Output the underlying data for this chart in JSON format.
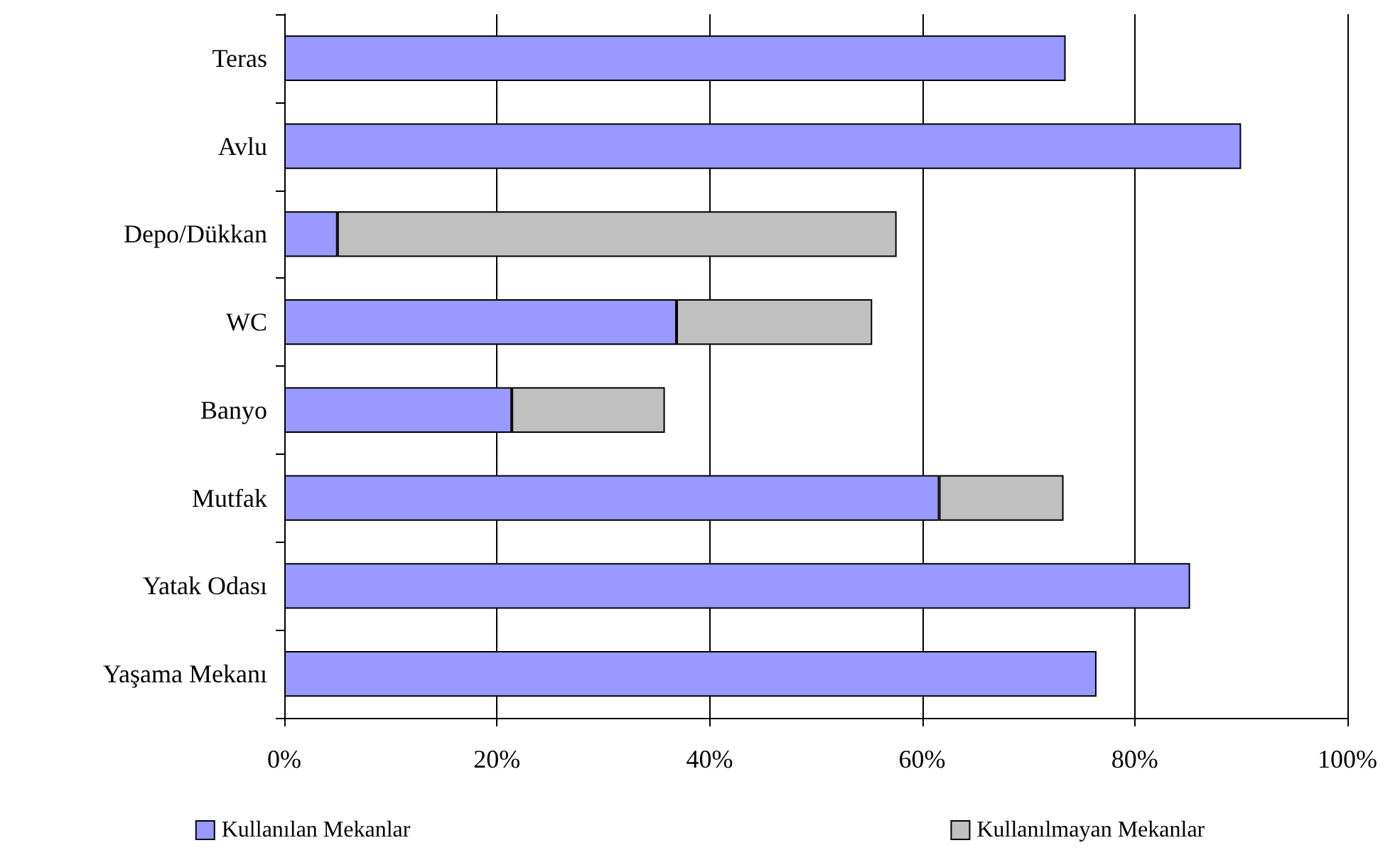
{
  "chart_data": {
    "type": "bar",
    "orientation": "horizontal",
    "stacked": true,
    "categories": [
      "Teras",
      "Avlu",
      "Depo/Dükkan",
      "WC",
      "Banyo",
      "Mutfak",
      "Yatak Odası",
      "Yaşama Mekanı"
    ],
    "series": [
      {
        "name": "Kullanılan Mekanlar",
        "color": "#9999ff",
        "values": [
          73.5,
          90,
          5,
          36.9,
          21.4,
          61.6,
          85.2,
          76.4
        ]
      },
      {
        "name": "Kullanılmayan Mekanlar",
        "color": "#c0c0c0",
        "values": [
          null,
          null,
          52.6,
          18.4,
          14.4,
          11.7,
          null,
          null
        ]
      }
    ],
    "xlim": [
      0,
      100
    ],
    "xticks": [
      {
        "value": 0,
        "label": "0%"
      },
      {
        "value": 20,
        "label": "20%"
      },
      {
        "value": 40,
        "label": "40%"
      },
      {
        "value": 60,
        "label": "60%"
      },
      {
        "value": 80,
        "label": "80%"
      },
      {
        "value": 100,
        "label": "100%"
      }
    ],
    "grid": "x",
    "legend": "bottom"
  }
}
